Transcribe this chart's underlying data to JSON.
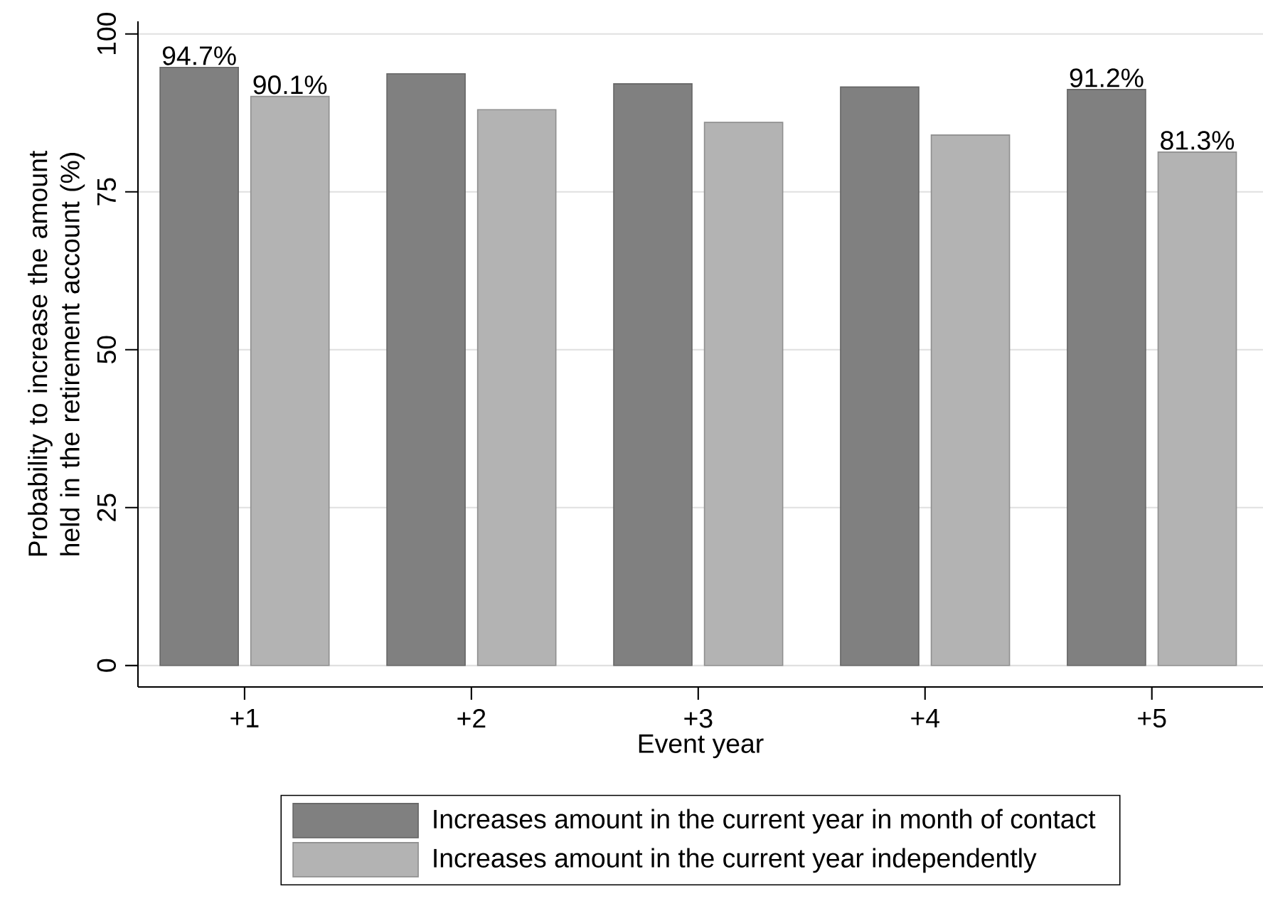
{
  "chart_data": {
    "type": "bar",
    "xlabel": "Event year",
    "ylabel": "Probability to increase the amount held in the retirement account (%)",
    "categories": [
      "+1",
      "+2",
      "+3",
      "+4",
      "+5"
    ],
    "series": [
      {
        "name": "Increases amount in the current year in month of contact",
        "color": "#808080",
        "values": [
          94.7,
          93.7,
          92.1,
          91.6,
          91.2
        ],
        "value_labels": [
          "94.7%",
          null,
          null,
          null,
          "91.2%"
        ]
      },
      {
        "name": "Increases amount in the current year independently",
        "color": "#b3b3b3",
        "values": [
          90.1,
          88.0,
          86.0,
          84.0,
          81.3
        ],
        "value_labels": [
          "90.1%",
          null,
          null,
          null,
          "81.3%"
        ]
      }
    ],
    "ylim": [
      -3.4,
      102
    ],
    "yticks": [
      0,
      25,
      50,
      75,
      100
    ],
    "grid": "y",
    "legend": "bottom"
  }
}
